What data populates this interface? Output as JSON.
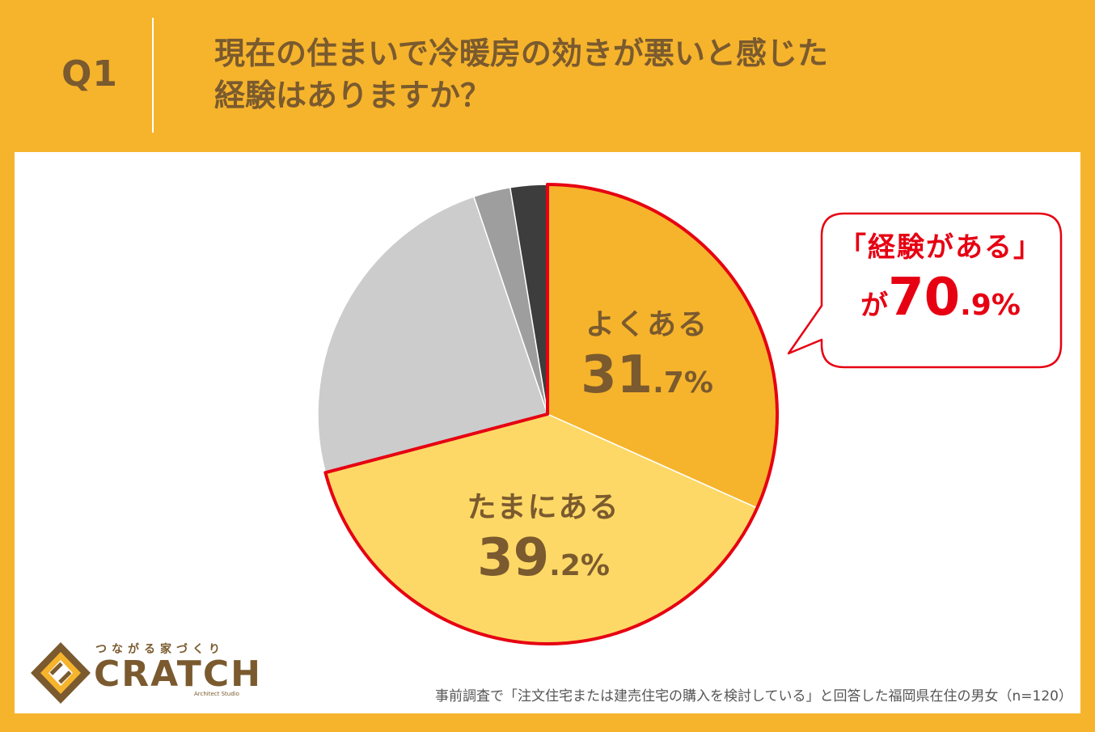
{
  "header": {
    "qnum": "Q1",
    "question_line1": "現在の住まいで冷暖房の効きが悪いと感じた",
    "question_line2": "経験はありますか？"
  },
  "chart_data": {
    "type": "pie",
    "slices": [
      {
        "label": "よくある",
        "value": 31.7,
        "pct_int": "31",
        "pct_dec": ".7%",
        "color": "#F6B42C",
        "labeled": true
      },
      {
        "label": "たまにある",
        "value": 39.2,
        "pct_int": "39",
        "pct_dec": ".2%",
        "color": "#FDD866",
        "labeled": true
      },
      {
        "label": "",
        "value": 23.9,
        "color": "#CCCCCC",
        "labeled": false
      },
      {
        "label": "",
        "value": 2.6,
        "color": "#9E9E9E",
        "labeled": false
      },
      {
        "label": "",
        "value": 2.6,
        "color": "#3D3D3D",
        "labeled": false
      }
    ],
    "highlight_color": "#E60012",
    "label_color": "#7A5A2E"
  },
  "callout": {
    "line1": "「経験がある」",
    "ga": "が",
    "value_int": "70",
    "value_dec": ".9%"
  },
  "footnote": "事前調査で「注文住宅または建売住宅の購入を検討している」と回答した福岡県在住の男女（n=120）",
  "logo": {
    "tagline": "つながる家づくり",
    "wordmark": "CRATCH",
    "sub": "Architect Studio",
    "color": "#7A5A2E",
    "accent": "#F6B42C"
  }
}
